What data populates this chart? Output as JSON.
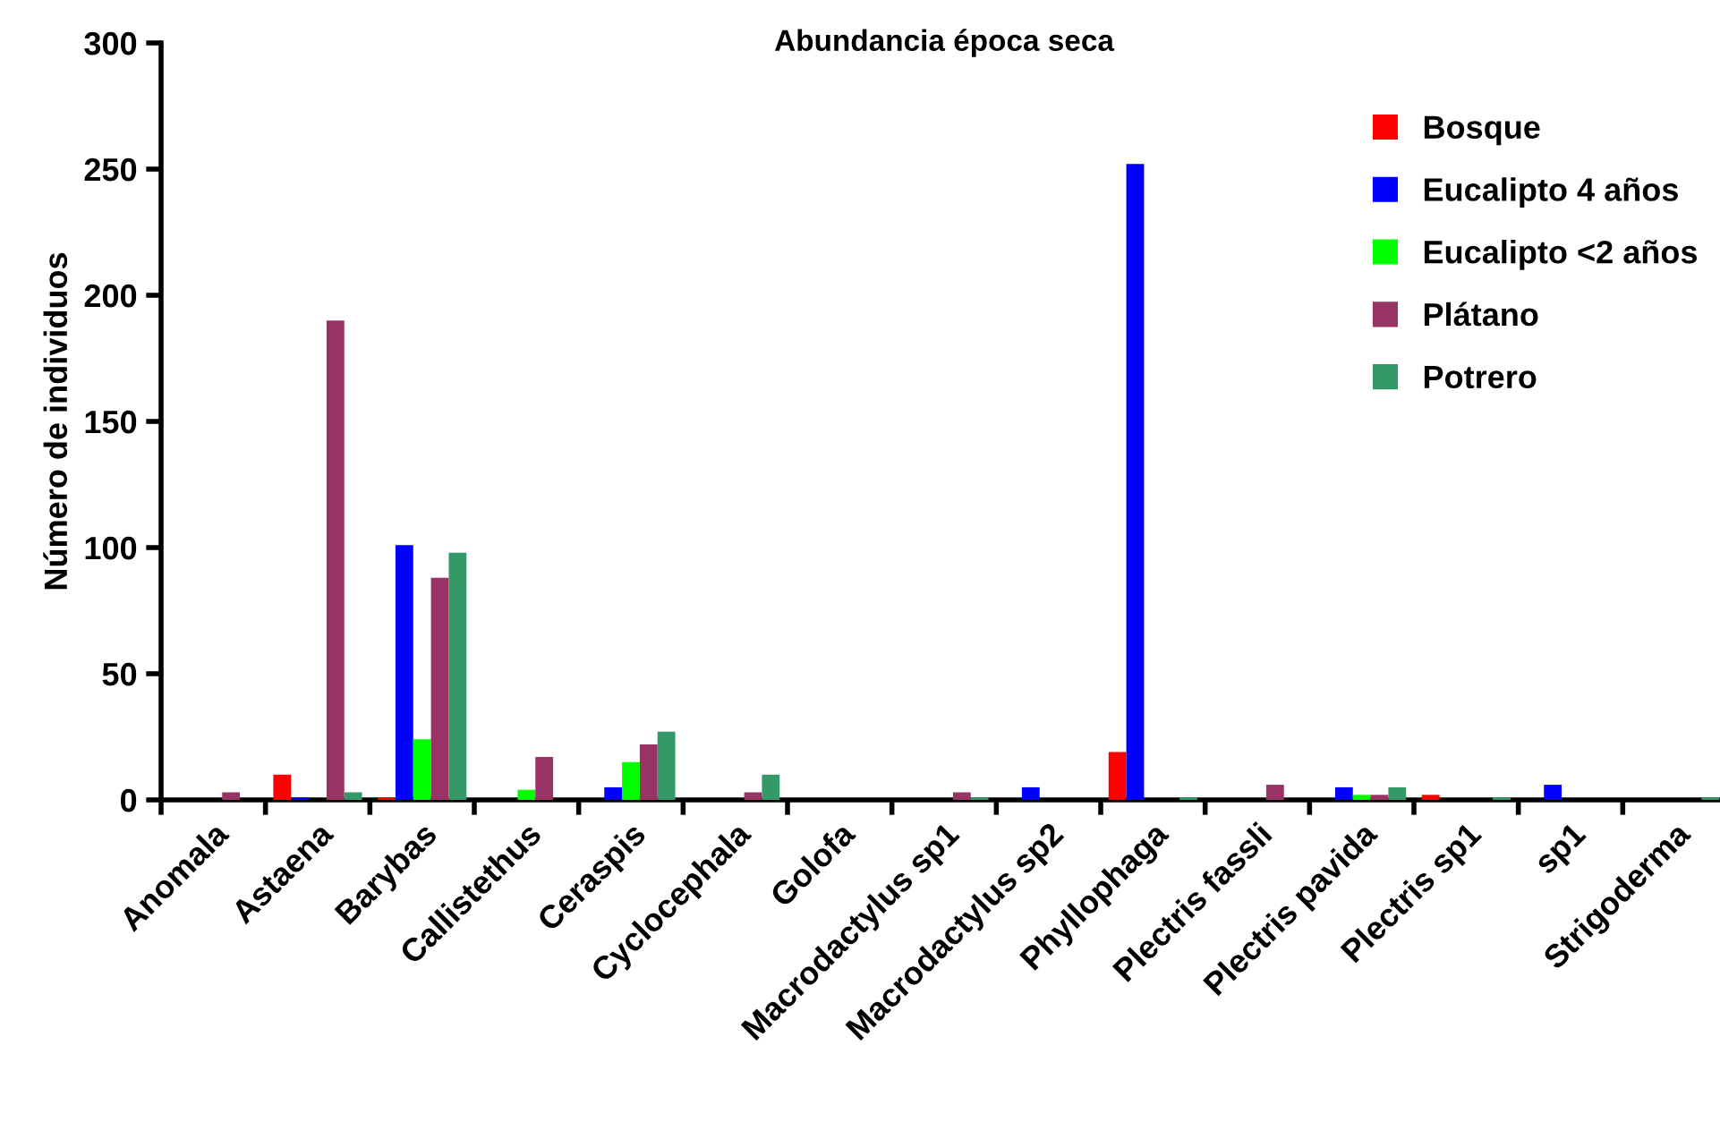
{
  "chart_data": {
    "type": "bar",
    "title": "Abundancia época seca",
    "ylabel": "Número de individuos",
    "categories": [
      "Anomala",
      "Astaena",
      "Barybas",
      "Callistethus",
      "Ceraspis",
      "Cyclocephala",
      "Golofa",
      "Macrodactylus sp1",
      "Macrodactylus sp2",
      "Phyllophaga",
      "Plectris fassli",
      "Plectris pavida",
      "Plectris sp1",
      "sp1",
      "Strigoderma"
    ],
    "series": [
      {
        "name": "Bosque",
        "color": "#ff0000",
        "values": [
          0,
          10,
          1,
          0,
          0,
          0,
          0,
          0,
          0,
          19,
          0,
          0,
          2,
          0,
          0
        ]
      },
      {
        "name": "Eucalipto 4 años",
        "color": "#0000ff",
        "values": [
          0,
          1,
          101,
          0,
          5,
          0,
          0,
          0,
          5,
          252,
          0,
          5,
          0,
          6,
          0
        ]
      },
      {
        "name": "Eucalipto <2 años",
        "color": "#00ff00",
        "values": [
          0,
          0,
          24,
          4,
          15,
          0,
          0,
          0,
          0,
          0,
          0,
          2,
          0,
          0,
          0
        ]
      },
      {
        "name": "Plátano",
        "color": "#993366",
        "values": [
          3,
          190,
          88,
          17,
          22,
          3,
          0,
          3,
          0,
          0,
          6,
          2,
          0,
          0,
          0
        ]
      },
      {
        "name": "Potrero",
        "color": "#339966",
        "values": [
          0,
          3,
          98,
          0,
          27,
          10,
          0,
          1,
          0,
          1,
          0,
          5,
          1,
          0,
          1
        ]
      }
    ],
    "ylim": [
      0,
      300
    ],
    "yticks": [
      0,
      50,
      100,
      150,
      200,
      250,
      300
    ],
    "grid": false,
    "legend": "right"
  }
}
